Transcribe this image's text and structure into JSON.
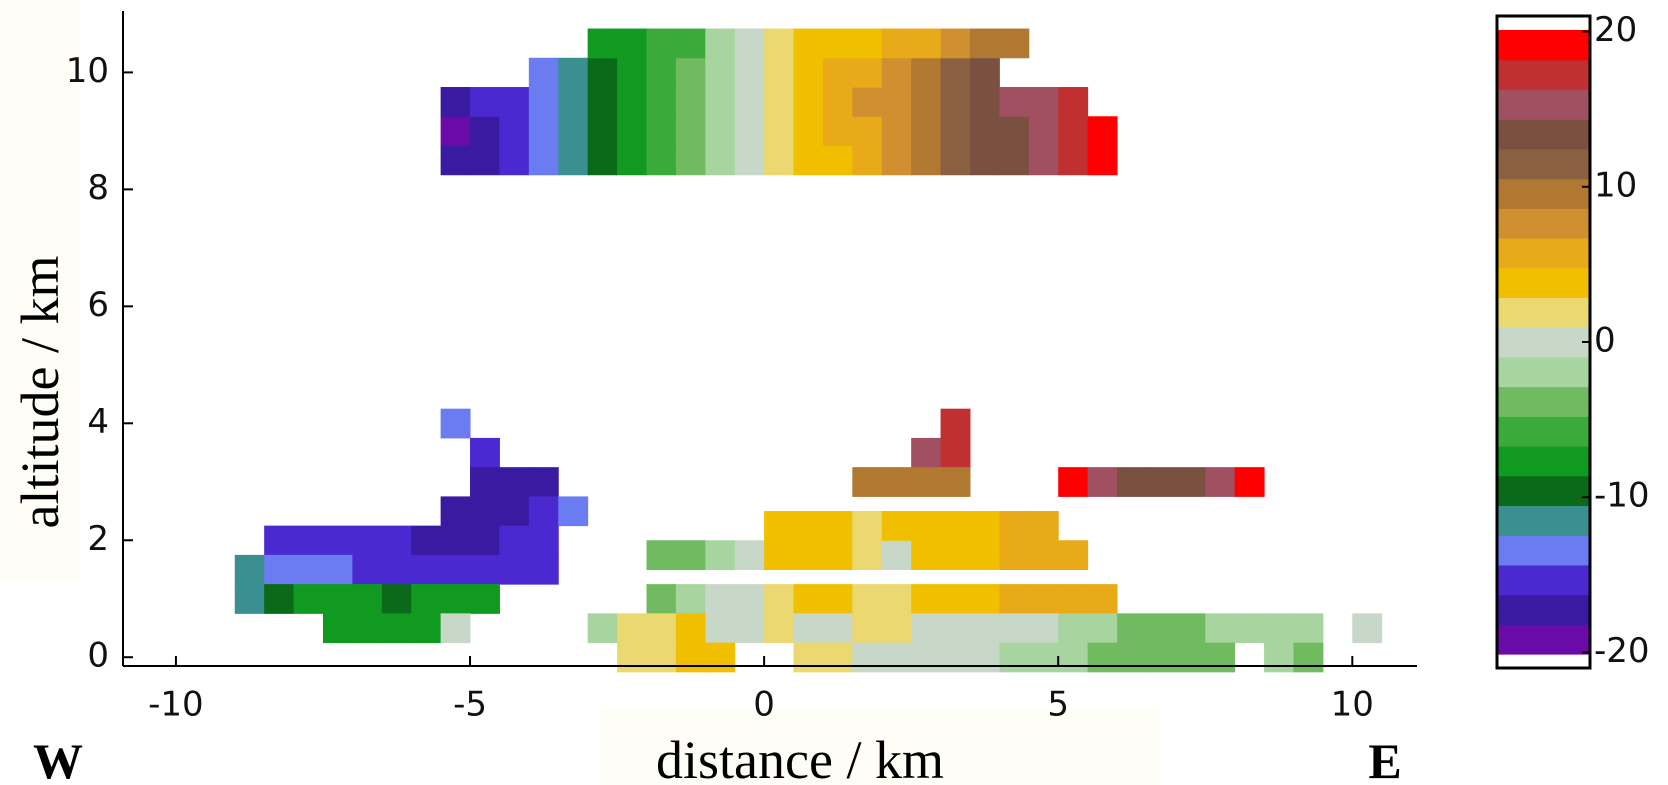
{
  "chart_data": {
    "type": "heatmap",
    "xlabel": "distance  / km",
    "ylabel": "altitude  / km",
    "west_label": "W",
    "east_label": "E",
    "xlim": [
      -10.9,
      11.1
    ],
    "xticks": [
      -10,
      -5,
      0,
      5,
      10
    ],
    "ylim": [
      -0.15,
      11.05
    ],
    "yticks": [
      0,
      2,
      4,
      6,
      8,
      10
    ],
    "colorbar": {
      "lim": [
        -21,
        21
      ],
      "ticks": [
        -20,
        -10,
        0,
        10,
        20
      ],
      "colors": [
        "#6a0aa8",
        "#3a1aa0",
        "#4a2ad0",
        "#6a7cf0",
        "#3a9090",
        "#0a6a1a",
        "#109a20",
        "#3aaa3a",
        "#70bb60",
        "#a8d4a0",
        "#c8d8c8",
        "#ecd870",
        "#f0c000",
        "#e8aa18",
        "#d09030",
        "#b07830",
        "#8a6040",
        "#7a5040",
        "#a05060",
        "#c03030",
        "#ff0000"
      ]
    },
    "echoes": [
      {
        "y": 8.5,
        "x": [
          -5.25,
          -4.75,
          -4.25,
          -3.75,
          -3.25,
          -2.75,
          -2.25,
          -1.75,
          -1.25,
          -0.75,
          -0.25,
          0.25,
          0.75,
          1.25,
          1.75,
          2.25,
          2.75,
          3.25,
          3.75,
          4.25,
          4.75,
          5.25,
          5.75
        ],
        "values": [
          -19,
          -18,
          -16,
          -14,
          -12,
          -10,
          -8,
          -7,
          -5,
          -3,
          -1,
          1,
          3,
          4,
          6,
          8,
          10,
          11,
          13,
          14,
          16,
          18,
          20
        ]
      },
      {
        "y": 9.0,
        "x": [
          -5.25,
          -4.75,
          -4.25,
          -3.75,
          -3.25,
          -2.75,
          -2.25,
          -1.75,
          -1.25,
          -0.75,
          -0.25,
          0.25,
          0.75,
          1.25,
          1.75,
          2.25,
          2.75,
          3.25,
          3.75,
          4.25,
          4.75,
          5.25,
          5.75
        ],
        "values": [
          -20,
          -18,
          -17,
          -15,
          -12,
          -10,
          -9,
          -7,
          -5,
          -3,
          -1,
          1,
          3,
          5,
          6,
          8,
          10,
          12,
          13,
          14,
          16,
          18,
          19
        ]
      },
      {
        "y": 9.5,
        "x": [
          -5.25,
          -4.75,
          -4.25,
          -3.75,
          -3.25,
          -2.75,
          -2.25,
          -1.75,
          -1.25,
          -0.75,
          -0.25,
          0.25,
          0.75,
          1.25,
          1.75,
          2.25,
          2.75,
          3.25,
          3.75,
          4.25,
          4.75,
          5.25
        ],
        "values": [
          -18,
          -17,
          -16,
          -14,
          -12,
          -10,
          -8,
          -7,
          -5,
          -3,
          -1,
          1,
          3,
          5,
          7,
          8,
          10,
          12,
          13,
          15,
          16,
          18
        ]
      },
      {
        "y": 10.0,
        "x": [
          -3.75,
          -3.25,
          -2.75,
          -2.25,
          -1.75,
          -1.25,
          -0.75,
          -0.25,
          0.25,
          0.75,
          1.25,
          1.75,
          2.25,
          2.75,
          3.25,
          3.75
        ],
        "values": [
          -14,
          -12,
          -10,
          -9,
          -7,
          -5,
          -3,
          -1,
          1,
          3,
          5,
          6,
          8,
          10,
          11,
          13
        ]
      },
      {
        "y": 10.5,
        "x": [
          -2.75,
          -2.25,
          -1.75,
          -1.25,
          -0.75,
          -0.25,
          0.25,
          0.75,
          1.25,
          1.75,
          2.25,
          2.75,
          3.25,
          3.75,
          4.25
        ],
        "values": [
          -8,
          -8,
          -7,
          -6,
          -3,
          -1,
          1,
          3,
          4,
          4,
          5,
          6,
          8,
          9,
          10
        ]
      },
      {
        "y": 4.0,
        "x": [
          -5.25,
          3.25
        ],
        "values": [
          -14,
          17
        ]
      },
      {
        "y": 3.5,
        "x": [
          -4.75,
          2.75,
          3.25
        ],
        "values": [
          -17,
          16,
          17
        ]
      },
      {
        "y": 3.0,
        "x": [
          -4.75,
          -4.25,
          -3.75,
          1.75,
          2.25,
          2.75,
          3.25,
          5.25,
          5.75,
          6.25,
          6.75,
          7.25,
          7.75,
          8.25
        ],
        "values": [
          -18,
          -19,
          -18,
          10,
          10,
          10,
          9,
          19,
          15,
          14,
          13,
          13,
          15,
          19
        ]
      },
      {
        "y": 2.5,
        "x": [
          -5.25,
          -4.75,
          -4.25,
          -3.75,
          -3.25
        ],
        "values": [
          -19,
          -18,
          -18,
          -17,
          -15
        ]
      },
      {
        "y": 2.0,
        "x": [
          -8.25,
          -7.75,
          -7.25,
          -6.75,
          -6.25,
          -5.75,
          -5.25,
          -4.75,
          -4.25,
          -3.75
        ],
        "values": [
          -17,
          -16,
          -16,
          -17,
          -17,
          -18,
          -19,
          -18,
          -17,
          -16
        ]
      },
      {
        "y": 1.5,
        "x": [
          -8.75,
          -8.25,
          -7.75,
          -7.25,
          -6.75,
          -6.25,
          -5.75,
          -5.25,
          -4.75,
          -4.25,
          -3.75
        ],
        "values": [
          -12,
          -14,
          -15,
          -15,
          -16,
          -16,
          -16,
          -16,
          -17,
          -17,
          -17
        ]
      },
      {
        "y": 1.0,
        "x": [
          -8.75,
          -8.25,
          -7.75,
          -7.25,
          -6.75,
          -6.25,
          -5.75,
          -5.25,
          -4.75,
          -1.75,
          -1.25,
          -0.75,
          -0.25,
          0.25,
          0.75,
          1.25,
          1.75,
          2.25,
          2.75,
          3.25,
          3.75,
          4.25,
          4.75,
          5.25,
          5.75
        ],
        "values": [
          -12,
          -10,
          -9,
          -9,
          -9,
          -10,
          -9,
          -9,
          -9,
          -5,
          -3,
          0,
          0,
          2,
          4,
          3,
          1,
          2,
          4,
          4,
          4,
          5,
          5,
          6,
          6
        ]
      },
      {
        "y": 1.75,
        "x": [
          -1.75,
          -1.25,
          -0.75,
          -0.25,
          0.25,
          0.75,
          1.25,
          1.75,
          2.25,
          2.75,
          3.25,
          3.75,
          4.25,
          4.75,
          5.25
        ],
        "values": [
          -5,
          -4,
          -2,
          0,
          3,
          4,
          4,
          2,
          0,
          3,
          4,
          4,
          5,
          5,
          6
        ]
      },
      {
        "y": 2.25,
        "x": [
          0.25,
          0.75,
          1.25,
          1.75,
          2.25,
          2.75,
          3.25,
          3.75,
          4.25,
          4.75
        ],
        "values": [
          3,
          4,
          4,
          1,
          3,
          4,
          4,
          4,
          5,
          6
        ]
      },
      {
        "y": 0.5,
        "x": [
          -7.25,
          -6.75,
          -6.25,
          -5.75,
          -5.25,
          -2.75,
          -2.25,
          -1.75,
          -1.25,
          -0.75,
          -0.25,
          0.25,
          0.75,
          1.25,
          1.75,
          2.25,
          2.75,
          3.25,
          3.75,
          4.25,
          4.75,
          5.25,
          5.75,
          6.25,
          6.75,
          7.25,
          7.75,
          8.25,
          8.75,
          9.25,
          10.25
        ],
        "values": [
          -8,
          -9,
          -9,
          -8,
          -1,
          -2,
          1,
          2,
          3,
          0,
          0,
          2,
          0,
          0,
          1,
          1,
          0,
          0,
          0,
          0,
          -1,
          -2,
          -3,
          -4,
          -4,
          -4,
          -3,
          -3,
          -2,
          -3,
          -1
        ]
      },
      {
        "y": 0.0,
        "x": [
          -2.25,
          -1.75,
          -1.25,
          -0.75,
          0.75,
          1.25,
          1.75,
          2.25,
          2.75,
          3.25,
          3.75,
          4.25,
          4.75,
          5.25,
          5.75,
          6.25,
          6.75,
          7.25,
          7.75,
          8.75,
          9.25
        ],
        "values": [
          1,
          2,
          3,
          3,
          2,
          2,
          0,
          0,
          0,
          0,
          -1,
          -2,
          -2,
          -3,
          -4,
          -4,
          -4,
          -4,
          -4,
          -3,
          -4
        ]
      }
    ]
  }
}
